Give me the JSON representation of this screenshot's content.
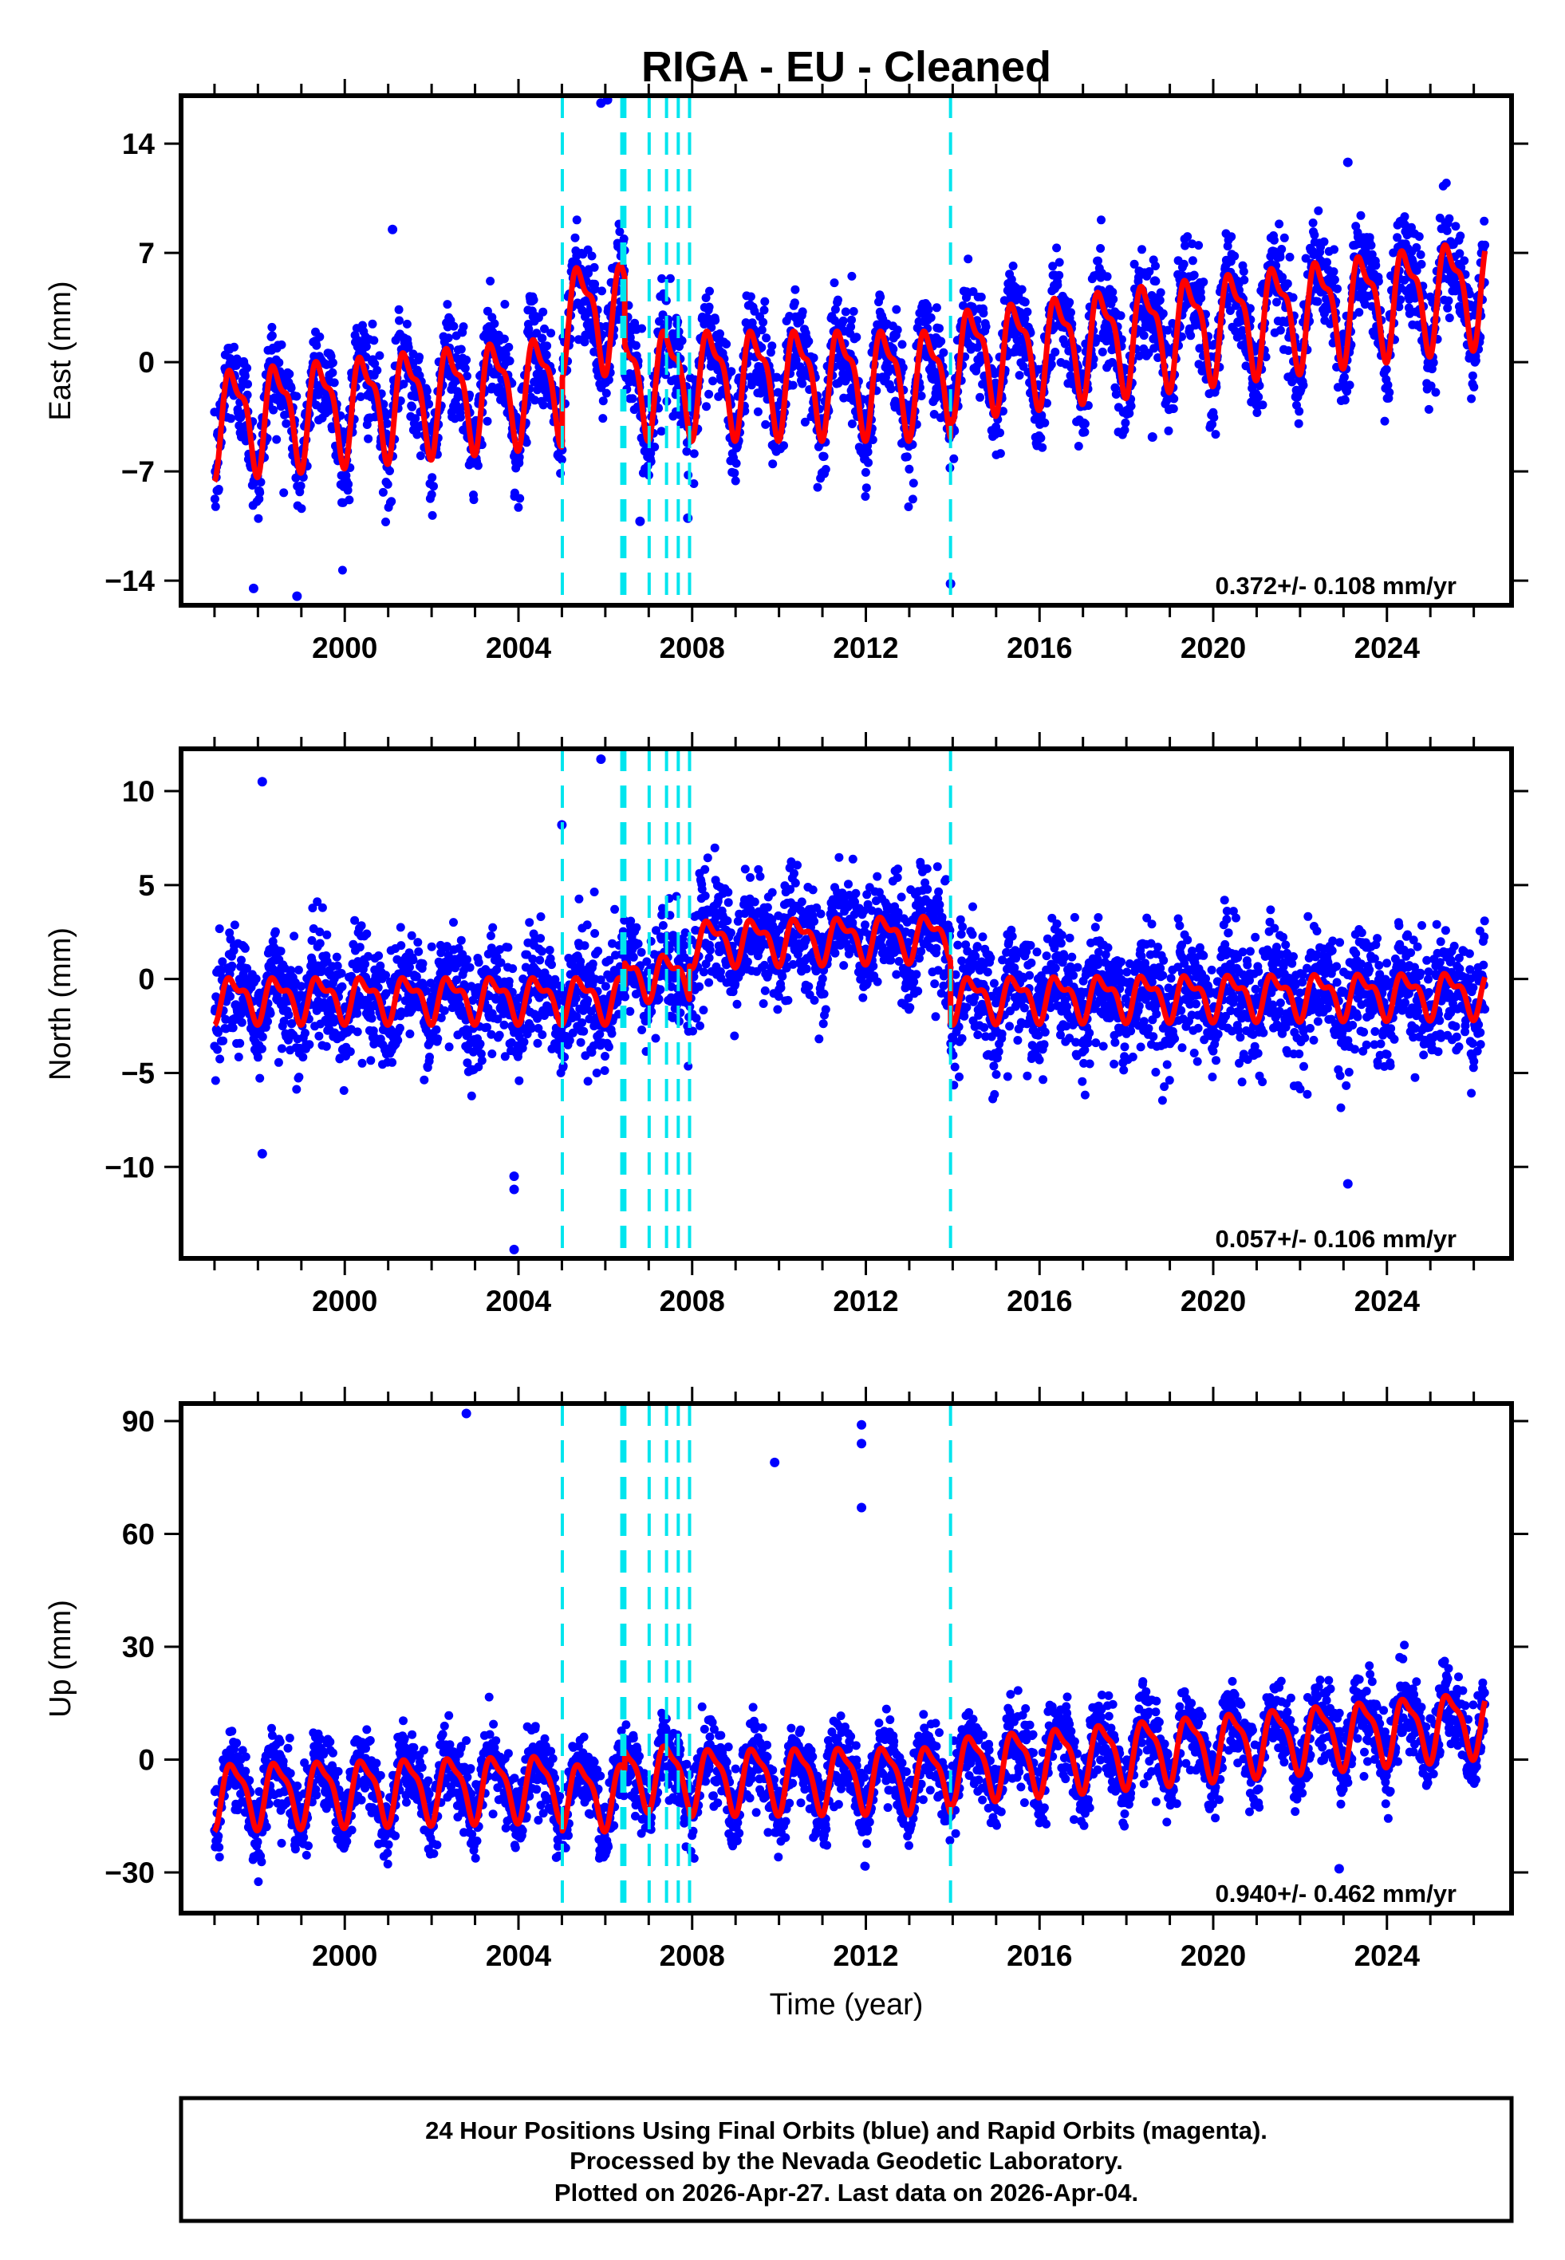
{
  "chart_data": {
    "type": "scatter",
    "title": "RIGA  - EU - Cleaned",
    "xlabel": "Time (year)",
    "xlim": [
      1996.23,
      2026.87
    ],
    "x_major_ticks": [
      2000,
      2004,
      2008,
      2012,
      2016,
      2020,
      2024
    ],
    "x_minor_step": 1,
    "data_span": [
      1997.0,
      2026.26
    ],
    "colors": {
      "points": "#0000ff",
      "model": "#ff0000",
      "steps": "#00e5ee",
      "frame": "#000000"
    },
    "step_lines": [
      2005.01,
      2006.38,
      2006.45,
      2007.01,
      2007.41,
      2007.68,
      2007.94,
      2013.95
    ],
    "panels": [
      {
        "name": "east",
        "ylabel": "East (mm)",
        "ylim": [
          -15.58,
          17.07
        ],
        "yticks": [
          14,
          7,
          0,
          -7,
          -14
        ],
        "rate_text": "0.372+/- 0.108 mm/yr",
        "noise": 1.6,
        "annual_amp": 3.0,
        "semi_amp": 1.2,
        "segments": [
          {
            "start": 1997.0,
            "end": 2005.01,
            "offset_at_start": -3.6,
            "slope": 0.28
          },
          {
            "start": 2005.01,
            "end": 2006.45,
            "offset_at_start": 3.0,
            "slope": 0.2
          },
          {
            "start": 2006.45,
            "end": 2013.95,
            "offset_at_start": -1.0,
            "slope": 0.0
          },
          {
            "start": 2013.95,
            "end": 2026.26,
            "offset_at_start": 0.2,
            "slope": 0.38
          }
        ],
        "outliers": [
          [
            1997.9,
            -14.5
          ],
          [
            1998.9,
            -15.0
          ],
          [
            2001.1,
            8.5
          ],
          [
            2005.9,
            16.6
          ],
          [
            2006.05,
            16.8
          ],
          [
            2006.8,
            -10.2
          ],
          [
            2007.9,
            -10.0
          ],
          [
            2013.95,
            -14.2
          ],
          [
            2023.1,
            12.8
          ],
          [
            2018.6,
            -4.8
          ]
        ]
      },
      {
        "name": "north",
        "ylabel": "North (mm)",
        "ylim": [
          -14.87,
          12.25
        ],
        "yticks": [
          10,
          5,
          0,
          -5,
          -10
        ],
        "rate_text": "0.057+/- 0.106 mm/yr",
        "noise": 1.5,
        "annual_amp": 1.0,
        "semi_amp": 0.5,
        "segments": [
          {
            "start": 1997.0,
            "end": 2006.45,
            "offset_at_start": -1.0,
            "slope": 0.0
          },
          {
            "start": 2006.45,
            "end": 2007.94,
            "offset_at_start": 0.2,
            "slope": 0.0
          },
          {
            "start": 2007.94,
            "end": 2013.95,
            "offset_at_start": 2.0,
            "slope": 0.05
          },
          {
            "start": 2013.95,
            "end": 2026.26,
            "offset_at_start": -1.0,
            "slope": 0.02
          }
        ],
        "outliers": [
          [
            1998.1,
            10.5
          ],
          [
            1998.1,
            -9.3
          ],
          [
            2003.9,
            -10.5
          ],
          [
            2003.9,
            -11.2
          ],
          [
            2003.9,
            -14.4
          ],
          [
            2005.0,
            8.2
          ],
          [
            2005.9,
            11.7
          ],
          [
            2023.1,
            -10.9
          ]
        ]
      },
      {
        "name": "up",
        "ylabel": "Up (mm)",
        "ylim": [
          -40.8,
          94.66
        ],
        "yticks": [
          90,
          60,
          30,
          0,
          -30
        ],
        "rate_text": "0.940+/- 0.462 mm/yr",
        "noise": 5.0,
        "annual_amp": 8.0,
        "semi_amp": 2.5,
        "segments": [
          {
            "start": 1997.0,
            "end": 2005.01,
            "offset_at_start": -9.0,
            "slope": 0.3
          },
          {
            "start": 2005.01,
            "end": 2006.45,
            "offset_at_start": -9.0,
            "slope": 0.0
          },
          {
            "start": 2006.45,
            "end": 2007.94,
            "offset_at_start": -4.0,
            "slope": 0.0
          },
          {
            "start": 2007.94,
            "end": 2013.95,
            "offset_at_start": -5.0,
            "slope": 0.1
          },
          {
            "start": 2013.95,
            "end": 2026.26,
            "offset_at_start": -2.0,
            "slope": 1.0
          }
        ],
        "outliers": [
          [
            2002.8,
            92.0
          ],
          [
            2009.9,
            79.0
          ],
          [
            2011.9,
            89.0
          ],
          [
            2011.9,
            84.0
          ],
          [
            2011.9,
            67.0
          ],
          [
            2022.9,
            -29.0
          ]
        ]
      }
    ]
  },
  "footer": {
    "lines": [
      "24 Hour Positions Using Final Orbits (blue) and Rapid Orbits (magenta).",
      "Processed by the Nevada Geodetic Laboratory.",
      "Plotted on 2026-Apr-27. Last data on 2026-Apr-04."
    ]
  }
}
